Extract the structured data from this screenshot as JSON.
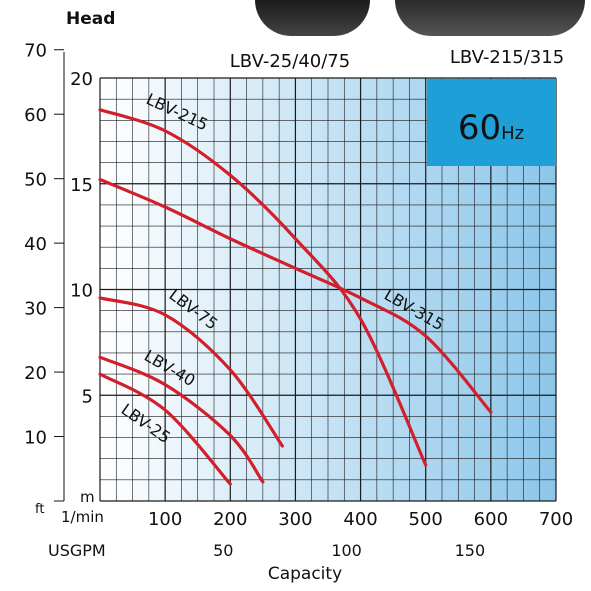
{
  "header": {
    "head_label": "Head",
    "model_label_left": "LBV-25/40/75",
    "model_label_right": "LBV-215/315"
  },
  "badge": {
    "freq": "60",
    "unit": "Hz"
  },
  "colors": {
    "curve": "#d21f2b",
    "badge_bg": "#1e9fd8",
    "grid": "#1a1a1a",
    "gradient_left": "#ffffff",
    "gradient_right": "#8cc6ea"
  },
  "chart_data": {
    "type": "line",
    "xlabel": "Capacity",
    "x_unit": "1/min",
    "x_secondary_unit": "USGPM",
    "ylabel": "Head",
    "y_unit_m": "m",
    "y_unit_ft": "ft",
    "xlim": [
      0,
      700
    ],
    "ylim_m": [
      0,
      20
    ],
    "x_ticks": [
      "100",
      "200",
      "300",
      "400",
      "500",
      "600",
      "700"
    ],
    "x_secondary_ticks": [
      "50",
      "100",
      "150"
    ],
    "y_ticks_m": [
      "5",
      "10",
      "15",
      "20"
    ],
    "y_ticks_ft": [
      "10",
      "20",
      "30",
      "40",
      "50",
      "60",
      "70"
    ],
    "series": [
      {
        "name": "LBV-25",
        "x": [
          0,
          100,
          200
        ],
        "y": [
          6.0,
          4.3,
          0.8
        ]
      },
      {
        "name": "LBV-40",
        "x": [
          0,
          100,
          200,
          250
        ],
        "y": [
          6.8,
          5.5,
          3.1,
          0.9
        ]
      },
      {
        "name": "LBV-75",
        "x": [
          0,
          100,
          200,
          280
        ],
        "y": [
          9.6,
          8.8,
          6.2,
          2.6
        ]
      },
      {
        "name": "LBV-215",
        "x": [
          0,
          100,
          200,
          300,
          400,
          500
        ],
        "y": [
          18.5,
          17.5,
          15.4,
          12.4,
          8.6,
          1.7
        ]
      },
      {
        "name": "LBV-315",
        "x": [
          0,
          100,
          200,
          300,
          400,
          500,
          600
        ],
        "y": [
          15.2,
          13.9,
          12.4,
          11.0,
          9.6,
          7.8,
          4.2
        ]
      }
    ]
  }
}
